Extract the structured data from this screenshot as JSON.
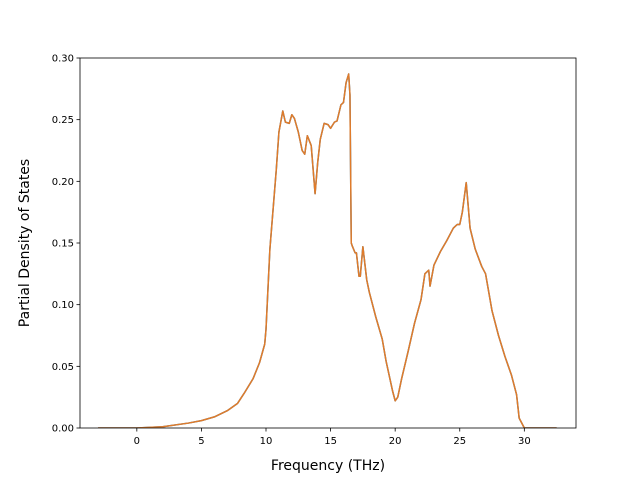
{
  "chart_data": {
    "type": "line",
    "title": "",
    "xlabel": "Frequency (THz)",
    "ylabel": "Partial Density of States",
    "xlim": [
      -4.4,
      34.0
    ],
    "ylim": [
      0.0,
      0.3
    ],
    "xticks": [
      0,
      5,
      10,
      15,
      20,
      25,
      30
    ],
    "yticks": [
      0.0,
      0.05,
      0.1,
      0.15,
      0.2,
      0.25,
      0.3
    ],
    "xtick_labels": [
      "0",
      "5",
      "10",
      "15",
      "20",
      "25",
      "30"
    ],
    "ytick_labels": [
      "0.00",
      "0.05",
      "0.10",
      "0.15",
      "0.20",
      "0.25",
      "0.30"
    ],
    "grid": false,
    "legend": "none",
    "series": [
      {
        "color": "#1f77b4",
        "x": [
          -3.0,
          0.0,
          2.0,
          4.0,
          5.0,
          6.0,
          7.0,
          7.8,
          8.3,
          9.0,
          9.5,
          9.9,
          10.0,
          10.3,
          10.8,
          11.0,
          11.3,
          11.5,
          11.8,
          12.0,
          12.2,
          12.5,
          12.8,
          13.0,
          13.2,
          13.5,
          13.8,
          14.0,
          14.2,
          14.5,
          14.8,
          15.0,
          15.3,
          15.5,
          15.8,
          16.0,
          16.2,
          16.4,
          16.5,
          16.6,
          16.7,
          16.9,
          17.0,
          17.2,
          17.3,
          17.5,
          17.8,
          18.0,
          18.5,
          19.0,
          19.3,
          19.8,
          20.0,
          20.2,
          20.5,
          21.0,
          21.5,
          22.0,
          22.3,
          22.6,
          22.7,
          23.0,
          23.5,
          24.0,
          24.5,
          24.8,
          25.0,
          25.2,
          25.5,
          25.8,
          26.2,
          26.7,
          27.0,
          27.5,
          28.0,
          28.5,
          29.0,
          29.4,
          29.6,
          30.0,
          31.0,
          32.5
        ],
        "values": [
          0.0,
          0.0,
          0.001,
          0.004,
          0.006,
          0.009,
          0.014,
          0.02,
          0.028,
          0.04,
          0.053,
          0.068,
          0.08,
          0.145,
          0.21,
          0.24,
          0.257,
          0.248,
          0.247,
          0.254,
          0.251,
          0.24,
          0.225,
          0.222,
          0.237,
          0.229,
          0.19,
          0.215,
          0.234,
          0.247,
          0.246,
          0.243,
          0.248,
          0.249,
          0.262,
          0.264,
          0.28,
          0.287,
          0.27,
          0.15,
          0.147,
          0.142,
          0.142,
          0.123,
          0.123,
          0.147,
          0.12,
          0.11,
          0.09,
          0.072,
          0.054,
          0.03,
          0.022,
          0.025,
          0.04,
          0.062,
          0.085,
          0.104,
          0.125,
          0.128,
          0.115,
          0.132,
          0.143,
          0.152,
          0.162,
          0.165,
          0.165,
          0.175,
          0.199,
          0.162,
          0.145,
          0.131,
          0.125,
          0.095,
          0.075,
          0.058,
          0.043,
          0.027,
          0.008,
          0.0,
          0.0,
          0.0
        ]
      },
      {
        "color": "#e07b2a",
        "x": [
          -3.0,
          0.0,
          2.0,
          4.0,
          5.0,
          6.0,
          7.0,
          7.8,
          8.3,
          9.0,
          9.5,
          9.9,
          10.0,
          10.3,
          10.8,
          11.0,
          11.3,
          11.5,
          11.8,
          12.0,
          12.2,
          12.5,
          12.8,
          13.0,
          13.2,
          13.5,
          13.8,
          14.0,
          14.2,
          14.5,
          14.8,
          15.0,
          15.3,
          15.5,
          15.8,
          16.0,
          16.2,
          16.4,
          16.5,
          16.6,
          16.7,
          16.9,
          17.0,
          17.2,
          17.3,
          17.5,
          17.8,
          18.0,
          18.5,
          19.0,
          19.3,
          19.8,
          20.0,
          20.2,
          20.5,
          21.0,
          21.5,
          22.0,
          22.3,
          22.6,
          22.7,
          23.0,
          23.5,
          24.0,
          24.5,
          24.8,
          25.0,
          25.2,
          25.5,
          25.8,
          26.2,
          26.7,
          27.0,
          27.5,
          28.0,
          28.5,
          29.0,
          29.4,
          29.6,
          30.0,
          31.0,
          32.5
        ],
        "values": [
          0.0,
          0.0,
          0.001,
          0.004,
          0.006,
          0.009,
          0.014,
          0.02,
          0.028,
          0.04,
          0.053,
          0.068,
          0.08,
          0.145,
          0.21,
          0.24,
          0.257,
          0.248,
          0.247,
          0.254,
          0.251,
          0.24,
          0.225,
          0.222,
          0.237,
          0.229,
          0.19,
          0.215,
          0.234,
          0.247,
          0.246,
          0.243,
          0.248,
          0.249,
          0.262,
          0.264,
          0.28,
          0.287,
          0.27,
          0.15,
          0.147,
          0.142,
          0.142,
          0.123,
          0.123,
          0.147,
          0.12,
          0.11,
          0.09,
          0.072,
          0.054,
          0.03,
          0.022,
          0.025,
          0.04,
          0.062,
          0.085,
          0.104,
          0.125,
          0.128,
          0.115,
          0.132,
          0.143,
          0.152,
          0.162,
          0.165,
          0.165,
          0.175,
          0.199,
          0.162,
          0.145,
          0.131,
          0.125,
          0.095,
          0.075,
          0.058,
          0.043,
          0.027,
          0.008,
          0.0,
          0.0,
          0.0
        ]
      }
    ]
  }
}
